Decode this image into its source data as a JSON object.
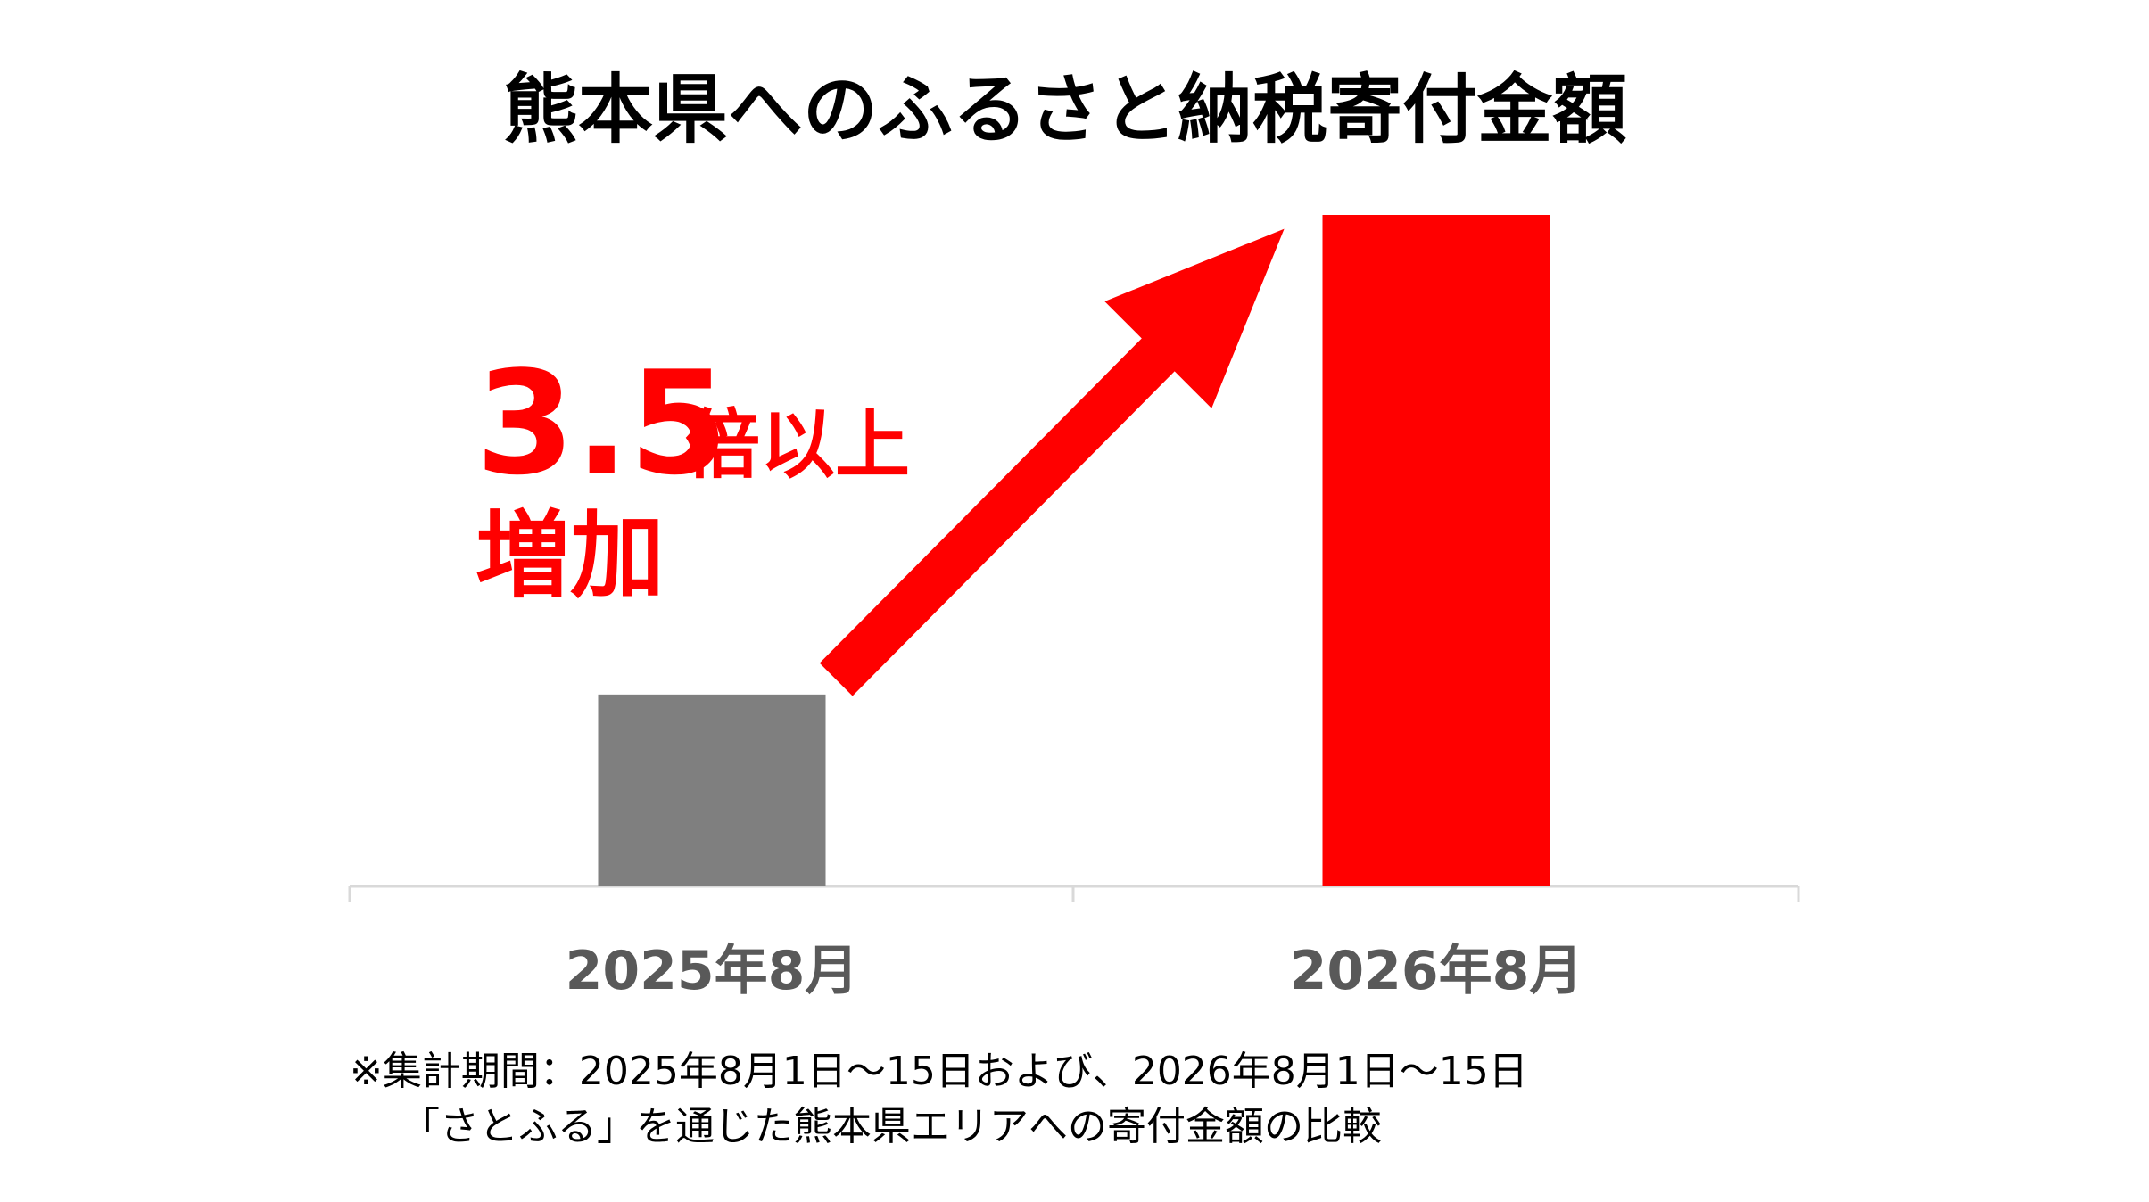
{
  "chart_data": {
    "type": "bar",
    "title": "熊本県へのふるさと納税寄付金額",
    "categories": [
      "2025年8月",
      "2026年8月"
    ],
    "values": [
      1,
      3.5
    ],
    "colors": [
      "#7f7f7f",
      "#ff0000"
    ],
    "annotation": [
      "3.5",
      "倍以上",
      "増加"
    ],
    "notes": [
      "※集計期間：2025年8月1日～15日および、2026年8月1日～15日",
      "「さとふる」を通じた熊本県エリアへの寄付金額の比較"
    ]
  }
}
